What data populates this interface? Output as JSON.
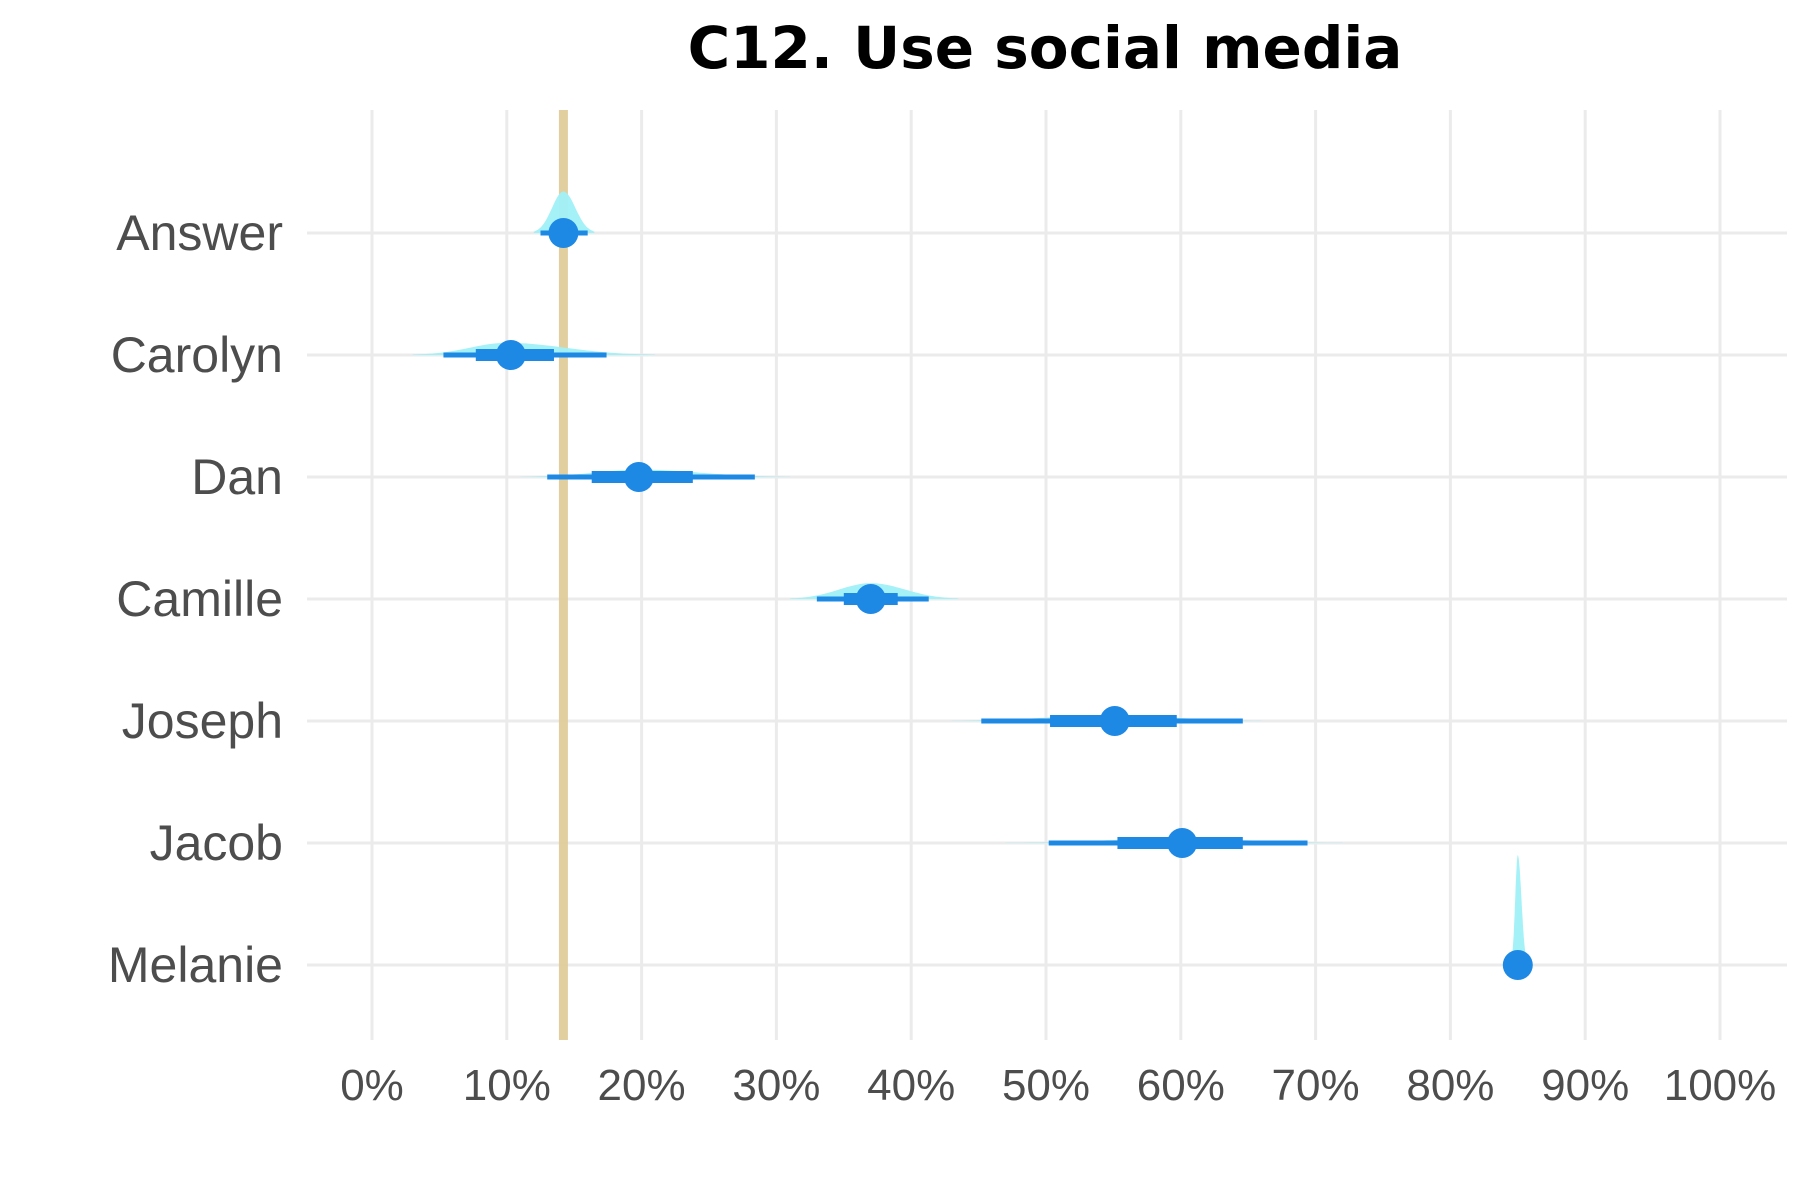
{
  "chart_data": {
    "type": "interval",
    "title": "C12. Use social media",
    "xlabel": "",
    "ylabel": "",
    "xlim": [
      0,
      1
    ],
    "x_ticks": [
      0,
      0.1,
      0.2,
      0.3,
      0.4,
      0.5,
      0.6,
      0.7,
      0.8,
      0.9,
      1.0
    ],
    "x_tick_labels": [
      "0%",
      "10%",
      "20%",
      "30%",
      "40%",
      "50%",
      "60%",
      "70%",
      "80%",
      "90%",
      "100%"
    ],
    "reference_line": {
      "value": 0.142,
      "color": "#e0cc9a"
    },
    "grid": true,
    "legend": "none",
    "colors": {
      "point": "#1e88e5",
      "interval": "#1e88e5",
      "density": "#9ff0f8"
    },
    "categories": [
      "Answer",
      "Carolyn",
      "Dan",
      "Camille",
      "Joseph",
      "Jacob",
      "Melanie"
    ],
    "series": [
      {
        "category": "Answer",
        "estimate": 0.142,
        "inner": [
          0.14,
          0.15
        ],
        "outer": [
          0.125,
          0.16
        ],
        "density": [
          0.12,
          0.165
        ],
        "density_peak": 0.142,
        "density_height": 0.34
      },
      {
        "category": "Carolyn",
        "estimate": 0.103,
        "inner": [
          0.077,
          0.135
        ],
        "outer": [
          0.053,
          0.174
        ],
        "density": [
          0.03,
          0.21
        ],
        "density_peak": 0.1,
        "density_height": 0.1
      },
      {
        "category": "Dan",
        "estimate": 0.198,
        "inner": [
          0.163,
          0.238
        ],
        "outer": [
          0.13,
          0.284
        ],
        "density": [
          0.11,
          0.31
        ],
        "density_peak": 0.2,
        "density_height": 0.06
      },
      {
        "category": "Camille",
        "estimate": 0.37,
        "inner": [
          0.35,
          0.39
        ],
        "outer": [
          0.33,
          0.413
        ],
        "density": [
          0.31,
          0.435
        ],
        "density_peak": 0.37,
        "density_height": 0.13
      },
      {
        "category": "Joseph",
        "estimate": 0.551,
        "inner": [
          0.503,
          0.597
        ],
        "outer": [
          0.452,
          0.646
        ],
        "density": [
          0.43,
          0.66
        ],
        "density_peak": 0.55,
        "density_height": 0.05
      },
      {
        "category": "Jacob",
        "estimate": 0.601,
        "inner": [
          0.553,
          0.646
        ],
        "outer": [
          0.502,
          0.694
        ],
        "density": [
          0.47,
          0.72
        ],
        "density_peak": 0.6,
        "density_height": 0.04
      },
      {
        "category": "Melanie",
        "estimate": 0.85,
        "inner": [
          0.85,
          0.85
        ],
        "outer": [
          0.85,
          0.85
        ],
        "density": [
          0.845,
          0.857
        ],
        "density_peak": 0.85,
        "density_height": 0.9
      }
    ]
  }
}
